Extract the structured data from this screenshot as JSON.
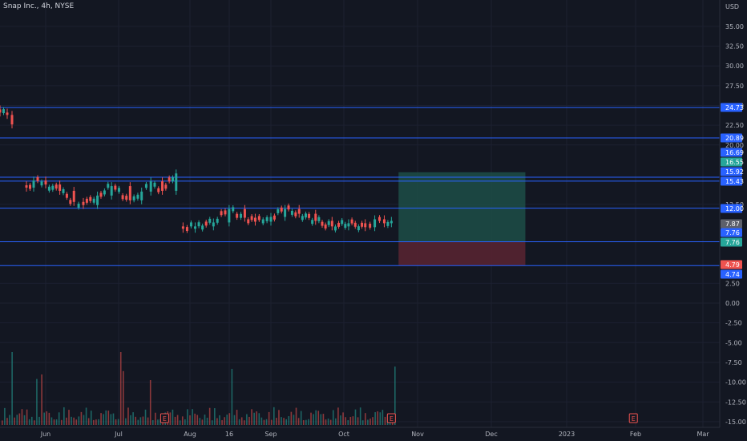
{
  "header": {
    "title": "Snap Inc., 4h, NYSE",
    "currency": "USD"
  },
  "chart_data": {
    "type": "candlestick",
    "title": "Snap Inc., 4h, NYSE",
    "ylabel": "USD",
    "ylim": [
      -15.5,
      37.5
    ],
    "y_ticks": [
      "35.00",
      "32.50",
      "30.00",
      "27.50",
      "25.00",
      "22.50",
      "20.00",
      "12.50",
      "2.50",
      "0.00",
      "-2.50",
      "-5.00",
      "-7.50",
      "-10.00",
      "-12.50",
      "-15.00"
    ],
    "x_ticks": [
      "Jun",
      "Jul",
      "Aug",
      "16",
      "Sep",
      "Oct",
      "Nov",
      "Dec",
      "2023",
      "Feb",
      "Mar"
    ],
    "price_series": [
      {
        "date": "May 13",
        "close": 24.1
      },
      {
        "date": "May 16",
        "close": 23.8
      },
      {
        "date": "May 18",
        "close": 22.6
      },
      {
        "date": "May 24",
        "close": 14.6
      },
      {
        "date": "May 27",
        "close": 15.5
      },
      {
        "date": "Jun 1",
        "close": 15.0
      },
      {
        "date": "Jun 7",
        "close": 14.2
      },
      {
        "date": "Jun 13",
        "close": 12.8
      },
      {
        "date": "Jun 17",
        "close": 12.4
      },
      {
        "date": "Jun 23",
        "close": 13.6
      },
      {
        "date": "Jun 29",
        "close": 14.8
      },
      {
        "date": "Jul 6",
        "close": 13.0
      },
      {
        "date": "Jul 11",
        "close": 14.1
      },
      {
        "date": "Jul 15",
        "close": 15.4
      },
      {
        "date": "Jul 20",
        "close": 14.2
      },
      {
        "date": "Jul 26",
        "close": 16.4
      },
      {
        "date": "Jul 29",
        "close": 9.4
      },
      {
        "date": "Aug 3",
        "close": 9.7
      },
      {
        "date": "Aug 10",
        "close": 10.2
      },
      {
        "date": "Aug 16",
        "close": 11.9
      },
      {
        "date": "Aug 22",
        "close": 10.8
      },
      {
        "date": "Aug 26",
        "close": 10.3
      },
      {
        "date": "Sep 1",
        "close": 10.9
      },
      {
        "date": "Sep 7",
        "close": 11.9
      },
      {
        "date": "Sep 13",
        "close": 11.3
      },
      {
        "date": "Sep 20",
        "close": 10.4
      },
      {
        "date": "Sep 27",
        "close": 9.7
      },
      {
        "date": "Oct 3",
        "close": 10.1
      },
      {
        "date": "Oct 10",
        "close": 9.6
      },
      {
        "date": "Oct 14",
        "close": 10.6
      },
      {
        "date": "Oct 18",
        "close": 10.1
      },
      {
        "date": "Oct 21",
        "close": 10.4
      }
    ],
    "horizontal_levels": [
      24.73,
      20.89,
      15.92,
      15.43,
      12.0,
      7.76,
      4.74
    ],
    "price_labels": [
      {
        "value": "24.73",
        "color": "#2962ff"
      },
      {
        "value": "20.89",
        "color": "#2962ff"
      },
      {
        "value": "16.69",
        "color": "#2962ff"
      },
      {
        "value": "16.55",
        "color": "#26a69a"
      },
      {
        "value": "15.92",
        "color": "#2962ff"
      },
      {
        "value": "15.43",
        "color": "#2962ff"
      },
      {
        "value": "12.00",
        "color": "#2962ff"
      },
      {
        "value": "7.87",
        "color": "#5d606b"
      },
      {
        "value": "7.76",
        "color": "#2962ff"
      },
      {
        "value": "7.76",
        "color": "#26a69a"
      },
      {
        "value": "4.79",
        "color": "#ef5350"
      },
      {
        "value": "4.74",
        "color": "#2962ff"
      }
    ],
    "position": {
      "type": "long",
      "entry": 7.76,
      "target": 16.55,
      "stop": 4.79,
      "start": "Oct 24",
      "end": "Dec 15"
    },
    "earnings_markers": [
      {
        "date": "Jul 21",
        "label": "E"
      },
      {
        "date": "Oct 21",
        "label": "E"
      },
      {
        "date": "Jan 31",
        "label": "E"
      }
    ],
    "volume_bars": {
      "count": 160,
      "spikes": [
        {
          "index": 4,
          "height": 0.65
        },
        {
          "index": 14,
          "height": 0.41
        },
        {
          "index": 16,
          "height": 0.45
        },
        {
          "index": 48,
          "height": 0.65
        },
        {
          "index": 49,
          "height": 0.48
        },
        {
          "index": 60,
          "height": 0.4
        },
        {
          "index": 93,
          "height": 0.5
        },
        {
          "index": 159,
          "height": 0.52
        }
      ]
    },
    "colors": {
      "background": "#131722",
      "up": "#26a69a",
      "down": "#ef5350",
      "level_line": "#2962ff",
      "axis_text": "#b2b5be",
      "profit_zone": "#1d4d47",
      "loss_zone": "#5b2431"
    },
    "grid": true
  }
}
